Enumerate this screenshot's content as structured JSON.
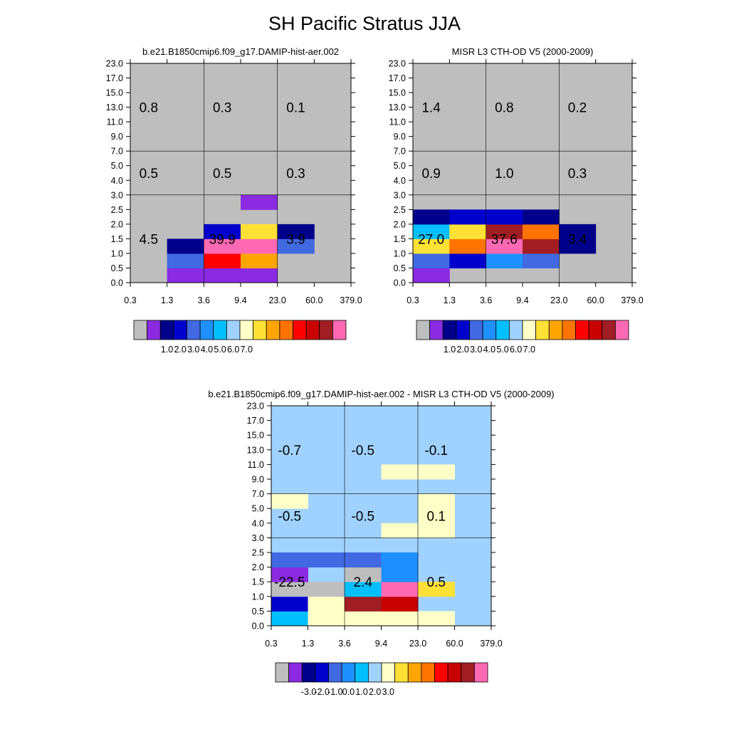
{
  "title": "SH Pacific Stratus JJA",
  "palette": [
    "#bebebe",
    "#8a2be2",
    "#00008b",
    "#0000cd",
    "#4169e1",
    "#1e90ff",
    "#00bfff",
    "#a0d2ff",
    "#ffffc8",
    "#ffe135",
    "#ffa500",
    "#ff7300",
    "#ff0000",
    "#c80000",
    "#a01e23",
    "#ff69b4"
  ],
  "chart_data": [
    {
      "type": "heatmap",
      "title": "b.e21.B1850cmip6.f09_g17.DAMIP-hist-aer.002",
      "x_ticks": [
        "0.3",
        "1.3",
        "3.6",
        "9.4",
        "23.0",
        "60.0",
        "379.0"
      ],
      "y_ticks": [
        "0.0",
        "0.5",
        "1.0",
        "1.5",
        "2.0",
        "2.5",
        "3.0",
        "4.0",
        "5.0",
        "7.0",
        "9.0",
        "11.0",
        "13.0",
        "15.0",
        "17.0",
        "23.0"
      ],
      "background_color_index": 0,
      "cells": [
        {
          "x": 1,
          "y": 0,
          "c": 1
        },
        {
          "x": 2,
          "y": 0,
          "c": 1
        },
        {
          "x": 3,
          "y": 0,
          "c": 1
        },
        {
          "x": 1,
          "y": 1,
          "c": 4
        },
        {
          "x": 2,
          "y": 1,
          "c": 12
        },
        {
          "x": 3,
          "y": 1,
          "c": 10
        },
        {
          "x": 1,
          "y": 2,
          "c": 2
        },
        {
          "x": 2,
          "y": 2,
          "c": 15
        },
        {
          "x": 3,
          "y": 2,
          "c": 15
        },
        {
          "x": 4,
          "y": 2,
          "c": 4
        },
        {
          "x": 2,
          "y": 3,
          "c": 3
        },
        {
          "x": 3,
          "y": 3,
          "c": 9
        },
        {
          "x": 4,
          "y": 3,
          "c": 2
        },
        {
          "x": 3,
          "y": 5,
          "c": 1
        }
      ],
      "annotations": [
        {
          "x": 0.5,
          "y": 12,
          "text": "0.8"
        },
        {
          "x": 2.5,
          "y": 12,
          "text": "0.3"
        },
        {
          "x": 4.5,
          "y": 12,
          "text": "0.1"
        },
        {
          "x": 0.5,
          "y": 7.5,
          "text": "0.5"
        },
        {
          "x": 2.5,
          "y": 7.5,
          "text": "0.5"
        },
        {
          "x": 4.5,
          "y": 7.5,
          "text": "0.3"
        },
        {
          "x": 0.5,
          "y": 3,
          "text": "4.5"
        },
        {
          "x": 2.5,
          "y": 3,
          "text": "39.9"
        },
        {
          "x": 4.5,
          "y": 3,
          "text": "3.9"
        }
      ],
      "colorbar_labels": [
        "1.0",
        "2.0",
        "3.0",
        "4.0",
        "5.0",
        "6.0",
        "7.0"
      ]
    },
    {
      "type": "heatmap",
      "title": "MISR L3 CTH-OD V5 (2000-2009)",
      "x_ticks": [
        "0.3",
        "1.3",
        "3.6",
        "9.4",
        "23.0",
        "60.0",
        "379.0"
      ],
      "y_ticks": [
        "0.0",
        "0.5",
        "1.0",
        "1.5",
        "2.0",
        "2.5",
        "3.0",
        "4.0",
        "5.0",
        "7.0",
        "9.0",
        "11.0",
        "13.0",
        "15.0",
        "17.0",
        "23.0"
      ],
      "background_color_index": 0,
      "cells": [
        {
          "x": 0,
          "y": 0,
          "c": 1
        },
        {
          "x": 0,
          "y": 1,
          "c": 4
        },
        {
          "x": 1,
          "y": 1,
          "c": 3
        },
        {
          "x": 2,
          "y": 1,
          "c": 5
        },
        {
          "x": 3,
          "y": 1,
          "c": 4
        },
        {
          "x": 0,
          "y": 2,
          "c": 9
        },
        {
          "x": 1,
          "y": 2,
          "c": 11
        },
        {
          "x": 2,
          "y": 2,
          "c": 15
        },
        {
          "x": 3,
          "y": 2,
          "c": 14
        },
        {
          "x": 4,
          "y": 2,
          "c": 2
        },
        {
          "x": 0,
          "y": 3,
          "c": 6
        },
        {
          "x": 1,
          "y": 3,
          "c": 9
        },
        {
          "x": 2,
          "y": 3,
          "c": 14
        },
        {
          "x": 3,
          "y": 3,
          "c": 11
        },
        {
          "x": 4,
          "y": 3,
          "c": 2
        },
        {
          "x": 0,
          "y": 4,
          "c": 2
        },
        {
          "x": 1,
          "y": 4,
          "c": 3
        },
        {
          "x": 2,
          "y": 4,
          "c": 3
        },
        {
          "x": 3,
          "y": 4,
          "c": 2
        }
      ],
      "annotations": [
        {
          "x": 0.5,
          "y": 12,
          "text": "1.4"
        },
        {
          "x": 2.5,
          "y": 12,
          "text": "0.8"
        },
        {
          "x": 4.5,
          "y": 12,
          "text": "0.2"
        },
        {
          "x": 0.5,
          "y": 7.5,
          "text": "0.9"
        },
        {
          "x": 2.5,
          "y": 7.5,
          "text": "1.0"
        },
        {
          "x": 4.5,
          "y": 7.5,
          "text": "0.3"
        },
        {
          "x": 0.5,
          "y": 3,
          "text": "27.0"
        },
        {
          "x": 2.5,
          "y": 3,
          "text": "37.6"
        },
        {
          "x": 4.5,
          "y": 3,
          "text": "3.4"
        }
      ],
      "colorbar_labels": [
        "1.0",
        "2.0",
        "3.0",
        "4.0",
        "5.0",
        "6.0",
        "7.0"
      ]
    },
    {
      "type": "heatmap",
      "title": "b.e21.B1850cmip6.f09_g17.DAMIP-hist-aer.002 - MISR L3 CTH-OD V5 (2000-2009)",
      "x_ticks": [
        "0.3",
        "1.3",
        "3.6",
        "9.4",
        "23.0",
        "60.0",
        "379.0"
      ],
      "y_ticks": [
        "0.0",
        "0.5",
        "1.0",
        "1.5",
        "2.0",
        "2.5",
        "3.0",
        "4.0",
        "5.0",
        "7.0",
        "9.0",
        "11.0",
        "13.0",
        "15.0",
        "17.0",
        "23.0"
      ],
      "background_color_index": 7,
      "cells": [
        {
          "x": 0,
          "y": 0,
          "c": 6
        },
        {
          "x": 1,
          "y": 0,
          "c": 8
        },
        {
          "x": 2,
          "y": 0,
          "c": 8
        },
        {
          "x": 3,
          "y": 0,
          "c": 8
        },
        {
          "x": 4,
          "y": 0,
          "c": 8
        },
        {
          "x": 0,
          "y": 1,
          "c": 3
        },
        {
          "x": 1,
          "y": 1,
          "c": 8
        },
        {
          "x": 2,
          "y": 1,
          "c": 14
        },
        {
          "x": 3,
          "y": 1,
          "c": 13
        },
        {
          "x": 0,
          "y": 2,
          "c": 0
        },
        {
          "x": 1,
          "y": 2,
          "c": 0
        },
        {
          "x": 2,
          "y": 2,
          "c": 6
        },
        {
          "x": 3,
          "y": 2,
          "c": 15
        },
        {
          "x": 4,
          "y": 2,
          "c": 9
        },
        {
          "x": 0,
          "y": 3,
          "c": 1
        },
        {
          "x": 2,
          "y": 3,
          "c": 0
        },
        {
          "x": 3,
          "y": 3,
          "c": 5
        },
        {
          "x": 0,
          "y": 4,
          "c": 4
        },
        {
          "x": 1,
          "y": 4,
          "c": 4
        },
        {
          "x": 2,
          "y": 4,
          "c": 4
        },
        {
          "x": 3,
          "y": 4,
          "c": 5
        },
        {
          "x": 3,
          "y": 6,
          "c": 8
        },
        {
          "x": 4,
          "y": 6,
          "c": 8
        },
        {
          "x": 4,
          "y": 7,
          "c": 8
        },
        {
          "x": 0,
          "y": 8,
          "c": 8
        },
        {
          "x": 4,
          "y": 8,
          "c": 8
        },
        {
          "x": 3,
          "y": 10,
          "c": 8
        },
        {
          "x": 4,
          "y": 10,
          "c": 8
        }
      ],
      "annotations": [
        {
          "x": 0.5,
          "y": 12,
          "text": "-0.7"
        },
        {
          "x": 2.5,
          "y": 12,
          "text": "-0.5"
        },
        {
          "x": 4.5,
          "y": 12,
          "text": "-0.1"
        },
        {
          "x": 0.5,
          "y": 7.5,
          "text": "-0.5"
        },
        {
          "x": 2.5,
          "y": 7.5,
          "text": "-0.5"
        },
        {
          "x": 4.5,
          "y": 7.5,
          "text": "0.1"
        },
        {
          "x": 0.5,
          "y": 3,
          "text": "-22.5"
        },
        {
          "x": 2.5,
          "y": 3,
          "text": "2.4"
        },
        {
          "x": 4.5,
          "y": 3,
          "text": "0.5"
        }
      ],
      "colorbar_labels": [
        "-3.0",
        "-2.0",
        "-1.0",
        "0.0",
        "1.0",
        "2.0",
        "3.0"
      ]
    }
  ]
}
